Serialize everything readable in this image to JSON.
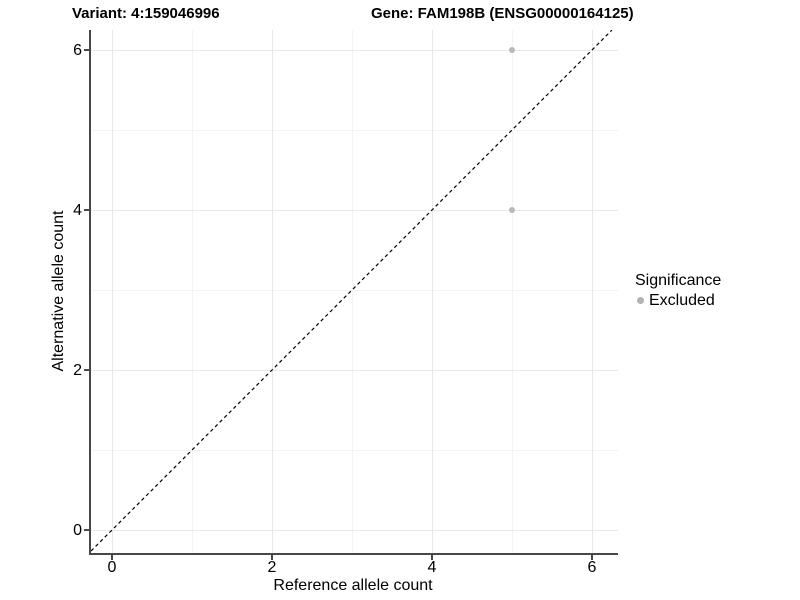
{
  "chart_data": {
    "type": "scatter",
    "title_left": "Variant: 4:159046996",
    "title_right": "Gene: FAM198B (ENSG00000164125)",
    "xlabel": "Reference allele count",
    "ylabel": "Alternative allele count",
    "xlim": [
      -0.3,
      6.3
    ],
    "ylim": [
      -0.3,
      6.3
    ],
    "x_ticks": [
      0,
      2,
      4,
      6
    ],
    "y_ticks": [
      0,
      2,
      4,
      6
    ],
    "x_minor_ticks": [
      1,
      3,
      5
    ],
    "y_minor_ticks": [
      1,
      3,
      5
    ],
    "grid": "major+minor",
    "legend_position": "right",
    "series": [
      {
        "name": "Excluded",
        "color": "#b9b9b9",
        "points": [
          {
            "x": 5,
            "y": 6
          },
          {
            "x": 5,
            "y": 4
          }
        ]
      }
    ],
    "reference_line": {
      "type": "identity",
      "slope": 1,
      "intercept": 0,
      "style": "dashed",
      "color": "#000000"
    },
    "legend": {
      "title": "Significance",
      "items": [
        {
          "label": "Excluded",
          "color": "#b2b2b2"
        }
      ]
    },
    "colors": {
      "background": "#ffffff",
      "axis_line": "#474747",
      "grid_major": "#e8e8e8",
      "grid_minor": "#f3f3f3",
      "text": "#000000"
    }
  }
}
